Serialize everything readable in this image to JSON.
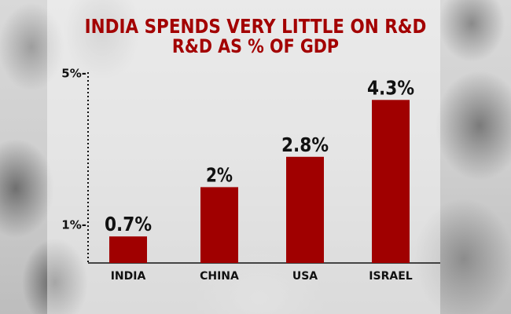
{
  "chart_data": {
    "type": "bar",
    "title": "INDIA SPENDS VERY LITTLE ON R&D",
    "subtitle": "R&D AS % OF GDP",
    "categories": [
      "INDIA",
      "CHINA",
      "USA",
      "ISRAEL"
    ],
    "values": [
      0.7,
      2,
      2.8,
      4.3
    ],
    "value_labels": [
      "0.7%",
      "2%",
      "2.8%",
      "4.3%"
    ],
    "y_ticks": [
      {
        "value": 1,
        "label": "1%-"
      },
      {
        "value": 5,
        "label": "5%-"
      }
    ],
    "ylim": [
      0,
      5
    ],
    "grid": false,
    "colors": {
      "bar": "#a00000",
      "title": "#a30000",
      "text": "#111111"
    }
  }
}
